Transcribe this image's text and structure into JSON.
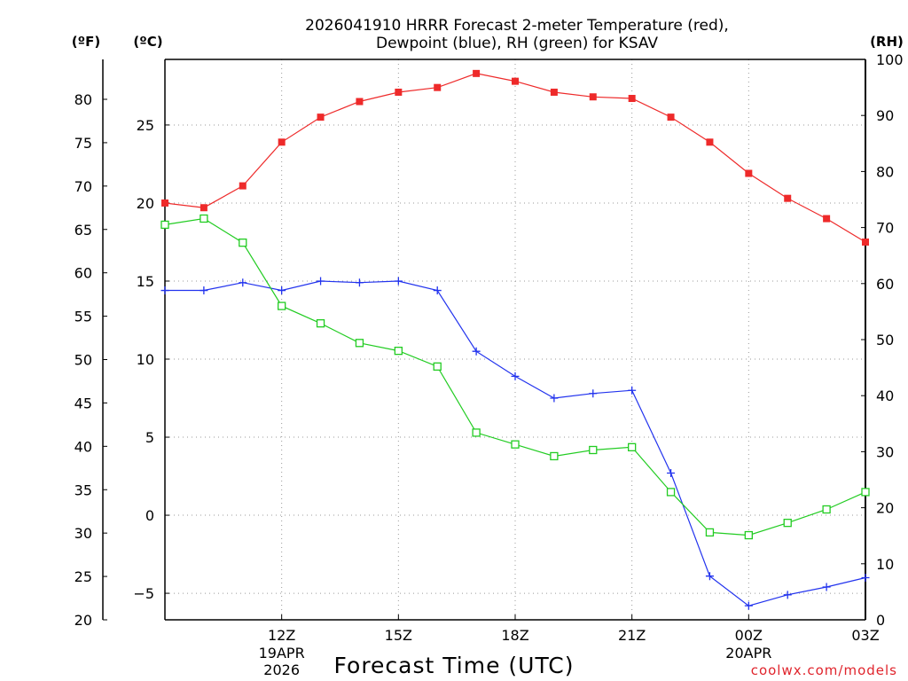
{
  "chart_data": {
    "type": "line",
    "title_line1": "2026041910 HRRR Forecast 2-meter Temperature (red),",
    "title_line2": "Dewpoint (blue), RH (green) for KSAV",
    "xlabel": "Forecast Time (UTC)",
    "credit": "coolwx.com/models",
    "unit_f": "(ºF)",
    "unit_c": "(ºC)",
    "unit_rh": "(RH)",
    "x_range": [
      9,
      27
    ],
    "x_ticks": [
      {
        "hour": 12,
        "label": "12Z",
        "label2": "19APR",
        "label3": "2026"
      },
      {
        "hour": 15,
        "label": "15Z"
      },
      {
        "hour": 18,
        "label": "18Z"
      },
      {
        "hour": 21,
        "label": "21Z"
      },
      {
        "hour": 24,
        "label": "00Z",
        "label2": "20APR"
      },
      {
        "hour": 27,
        "label": "03Z"
      }
    ],
    "c_range": [
      -6.7,
      29.2
    ],
    "c_ticks": [
      -5,
      0,
      5,
      10,
      15,
      20,
      25
    ],
    "f_range": [
      20,
      84.6
    ],
    "f_ticks": [
      20,
      25,
      30,
      35,
      40,
      45,
      50,
      55,
      60,
      65,
      70,
      75,
      80
    ],
    "rh_range": [
      0,
      100
    ],
    "rh_ticks": [
      0,
      10,
      20,
      30,
      40,
      50,
      60,
      70,
      80,
      90,
      100
    ],
    "hours": [
      9,
      10,
      11,
      12,
      13,
      14,
      15,
      16,
      17,
      18,
      19,
      20,
      21,
      22,
      23,
      24,
      25,
      26,
      27
    ],
    "series": [
      {
        "name": "Temperature",
        "unit": "C",
        "color": "#ee2a2a",
        "marker": "filled-square",
        "values": [
          20.0,
          19.7,
          21.1,
          23.9,
          25.5,
          26.5,
          27.1,
          27.4,
          28.3,
          27.8,
          27.1,
          26.8,
          26.7,
          25.5,
          23.9,
          21.9,
          20.3,
          19.0,
          17.5
        ]
      },
      {
        "name": "Dewpoint",
        "unit": "C",
        "color": "#2233ee",
        "marker": "plus",
        "values": [
          14.4,
          14.4,
          14.9,
          14.4,
          15.0,
          14.9,
          15.0,
          14.4,
          10.5,
          8.9,
          7.5,
          7.8,
          8.0,
          2.7,
          -3.9,
          -5.8,
          -5.1,
          -4.6,
          -4.0
        ]
      },
      {
        "name": "RH",
        "unit": "%",
        "color": "#22cc22",
        "marker": "open-square",
        "values": [
          70.5,
          71.6,
          67.3,
          56.0,
          52.9,
          49.4,
          48.0,
          45.2,
          33.4,
          31.3,
          29.2,
          30.3,
          30.8,
          22.8,
          15.6,
          15.1,
          17.3,
          19.7,
          22.8
        ]
      }
    ]
  }
}
